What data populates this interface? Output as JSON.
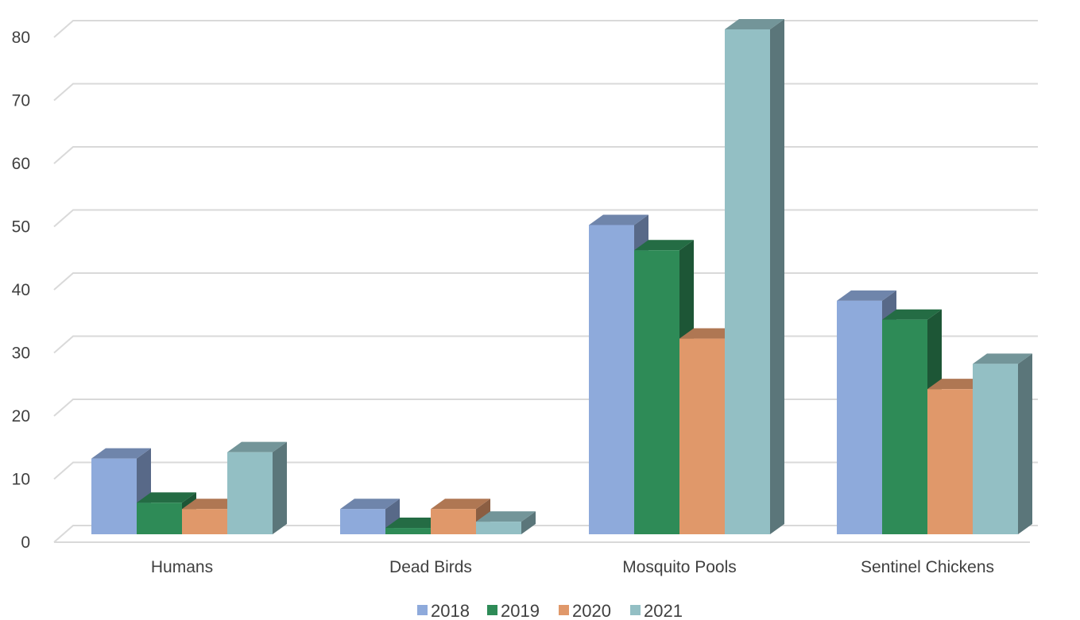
{
  "chart_data": {
    "type": "bar",
    "style": "3d-clustered-column",
    "title": "",
    "xlabel": "",
    "ylabel": "",
    "categories": [
      "Humans",
      "Dead Birds",
      "Mosquito Pools",
      "Sentinel Chickens"
    ],
    "series": [
      {
        "name": "2018",
        "color": "#8eaadb",
        "values": [
          12,
          4,
          49,
          37
        ]
      },
      {
        "name": "2019",
        "color": "#2e8b57",
        "values": [
          5,
          1,
          45,
          34
        ]
      },
      {
        "name": "2020",
        "color": "#e0986a",
        "values": [
          4,
          4,
          31,
          23
        ]
      },
      {
        "name": "2021",
        "color": "#93bfc4",
        "values": [
          13,
          2,
          80,
          27
        ]
      }
    ],
    "ylim": [
      0,
      80
    ],
    "yticks": [
      0,
      10,
      20,
      30,
      40,
      50,
      60,
      70,
      80
    ],
    "grid": true,
    "legend_position": "bottom"
  }
}
